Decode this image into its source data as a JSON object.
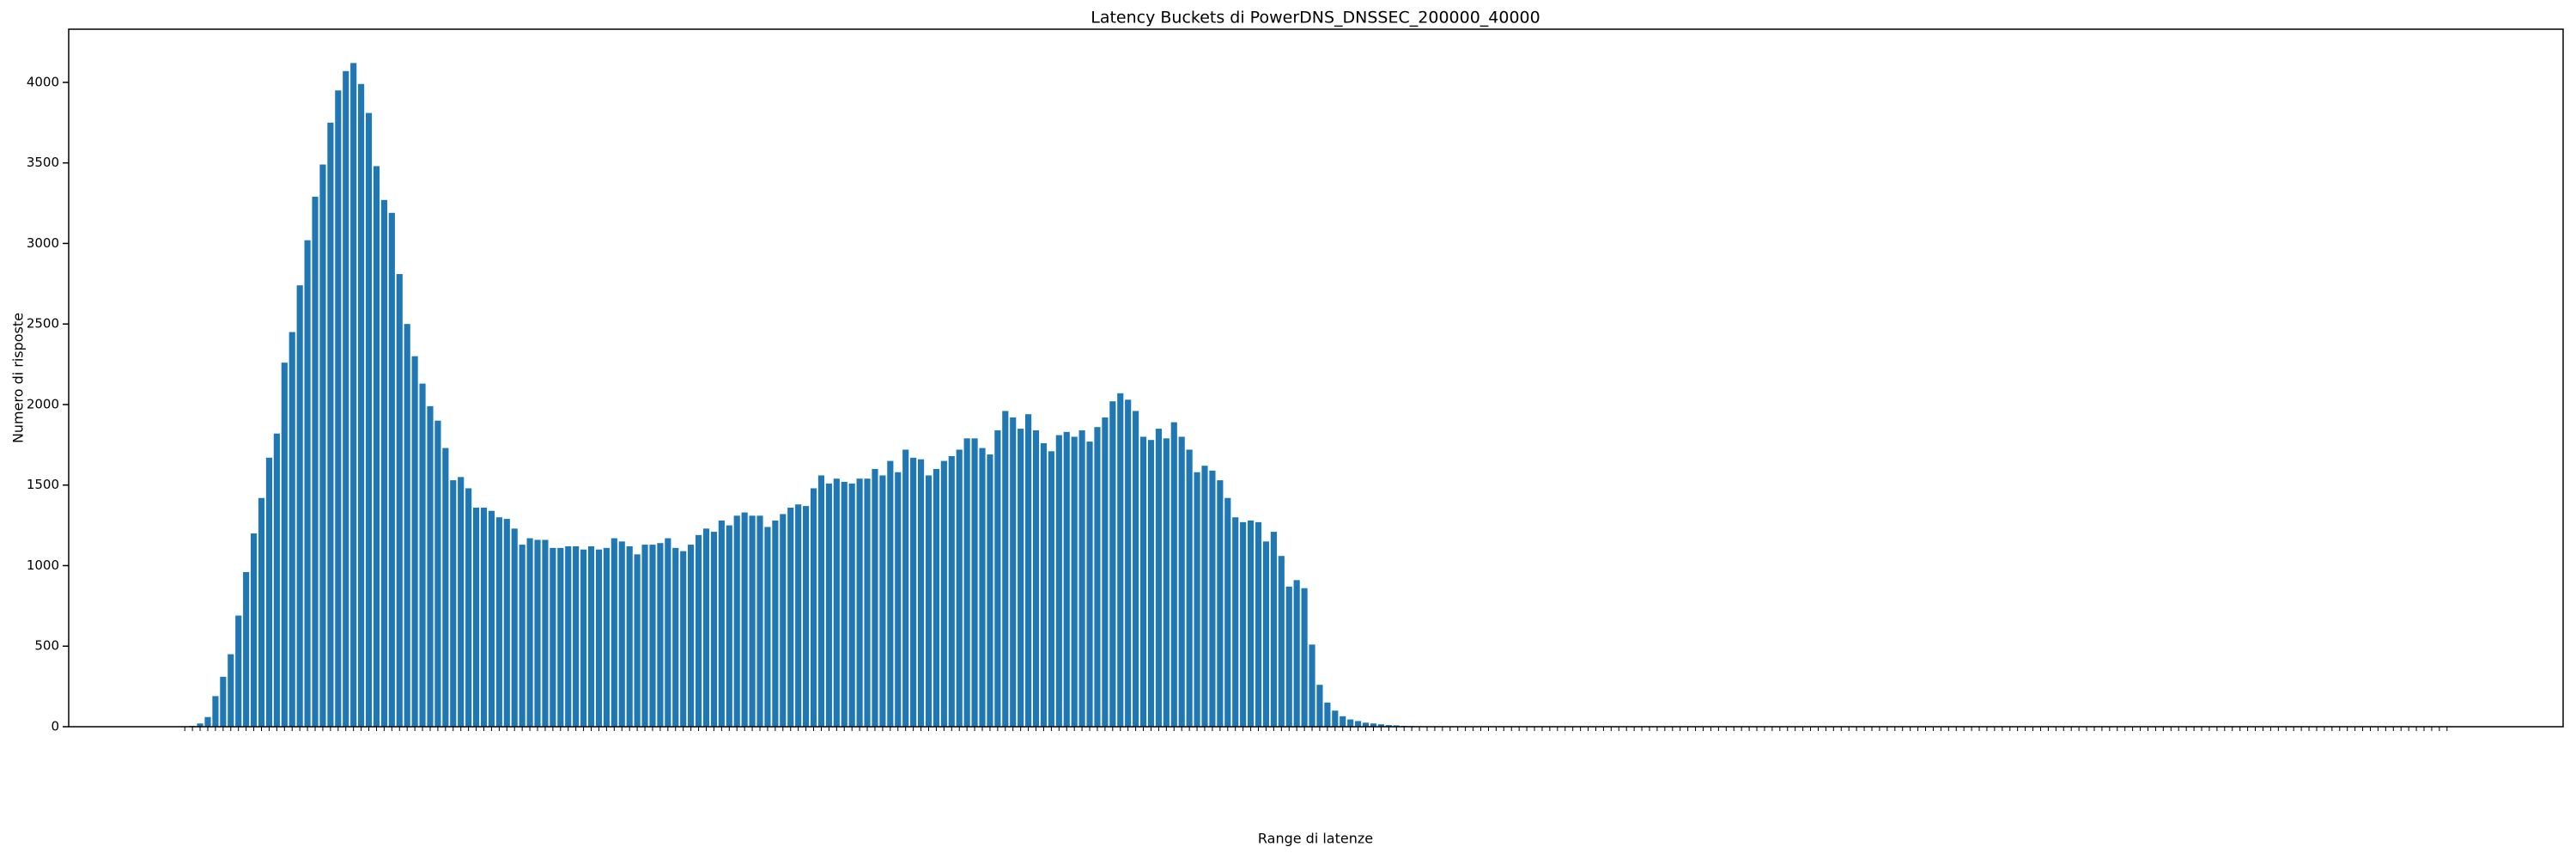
{
  "chart_data": {
    "type": "bar",
    "title": "Latency Buckets di PowerDNS_DNSSEC_200000_40000",
    "xlabel": "Range di latenze",
    "ylabel": "Numero di risposte",
    "color": "#1f77b4",
    "ylim": [
      0,
      4330
    ],
    "yticks": [
      0,
      500,
      1000,
      1500,
      2000,
      2500,
      3000,
      3500,
      4000
    ],
    "values": [
      0,
      5,
      20,
      60,
      190,
      310,
      450,
      690,
      960,
      1200,
      1420,
      1670,
      1820,
      2260,
      2450,
      2740,
      3020,
      3290,
      3490,
      3750,
      3950,
      4070,
      4120,
      3990,
      3810,
      3480,
      3270,
      3190,
      2810,
      2500,
      2300,
      2130,
      1990,
      1900,
      1730,
      1530,
      1550,
      1480,
      1360,
      1360,
      1340,
      1300,
      1290,
      1230,
      1130,
      1170,
      1160,
      1160,
      1110,
      1110,
      1120,
      1120,
      1100,
      1120,
      1100,
      1110,
      1170,
      1150,
      1120,
      1070,
      1130,
      1130,
      1140,
      1170,
      1110,
      1090,
      1130,
      1190,
      1230,
      1210,
      1280,
      1250,
      1310,
      1330,
      1310,
      1310,
      1240,
      1280,
      1320,
      1360,
      1380,
      1370,
      1480,
      1560,
      1510,
      1540,
      1520,
      1510,
      1540,
      1540,
      1600,
      1560,
      1650,
      1580,
      1720,
      1670,
      1660,
      1560,
      1600,
      1650,
      1680,
      1720,
      1790,
      1790,
      1730,
      1690,
      1840,
      1960,
      1920,
      1850,
      1940,
      1840,
      1760,
      1710,
      1810,
      1830,
      1800,
      1840,
      1770,
      1860,
      1920,
      2020,
      2070,
      2030,
      1960,
      1800,
      1780,
      1850,
      1790,
      1890,
      1800,
      1720,
      1580,
      1620,
      1590,
      1530,
      1420,
      1300,
      1270,
      1280,
      1270,
      1150,
      1210,
      1060,
      870,
      910,
      860,
      510,
      260,
      150,
      100,
      65,
      45,
      35,
      25,
      20,
      15,
      10,
      8,
      5,
      4,
      3,
      2,
      2,
      2,
      1,
      1,
      1,
      1,
      1,
      1,
      1,
      1,
      0,
      1,
      0,
      1,
      0,
      0,
      1,
      0,
      0,
      0,
      1,
      0,
      0,
      0,
      0,
      0,
      0,
      0,
      0,
      0,
      0,
      0,
      0,
      0,
      0,
      0,
      0,
      0,
      0,
      0,
      0,
      0,
      0,
      0,
      0,
      0,
      0,
      0,
      0,
      0,
      0,
      0,
      0,
      0,
      0,
      0,
      0,
      0,
      0,
      0,
      0,
      0,
      0,
      0,
      0,
      0,
      0,
      0,
      0,
      0,
      0,
      0,
      0,
      0,
      0,
      0,
      0,
      0,
      0,
      0,
      0,
      0,
      0,
      0,
      0,
      0,
      0,
      0,
      0,
      0,
      0,
      0,
      0,
      0,
      0,
      0,
      0,
      0,
      0,
      0,
      0,
      0,
      0,
      0,
      0,
      0,
      0,
      0,
      0,
      0,
      0,
      0,
      0,
      0,
      0,
      0,
      0,
      0,
      0,
      0,
      0,
      0,
      0,
      0,
      0,
      0,
      0,
      0,
      0,
      0,
      0,
      0,
      0
    ]
  }
}
